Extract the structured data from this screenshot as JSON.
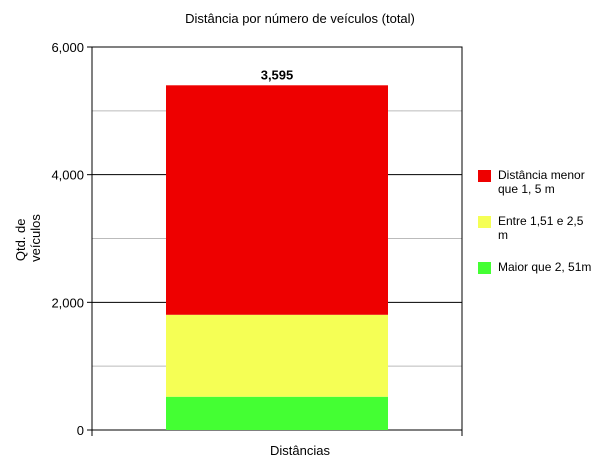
{
  "chart_data": {
    "type": "bar",
    "stacked": true,
    "title": "Distância por número de veículos (total)",
    "xlabel": "Distâncias",
    "ylabel": "Qtd. de veículos",
    "ylim": [
      0,
      6000
    ],
    "yticks": [
      "0",
      "2,000",
      "4,000",
      "6,000"
    ],
    "grid": true,
    "legend_position": "right",
    "categories": [
      ""
    ],
    "series": [
      {
        "name": "Maior que 2, 51m",
        "values": [
          521
        ],
        "label": "521",
        "color": "#44ff33"
      },
      {
        "name": "Entre 1,51 e 2,5 m",
        "values": [
          1284
        ],
        "label": "1,284",
        "color": "#f5ff55"
      },
      {
        "name": "Distância menor que 1, 5 m",
        "values": [
          3595
        ],
        "label": "3,595",
        "color": "#ee0000"
      }
    ]
  }
}
